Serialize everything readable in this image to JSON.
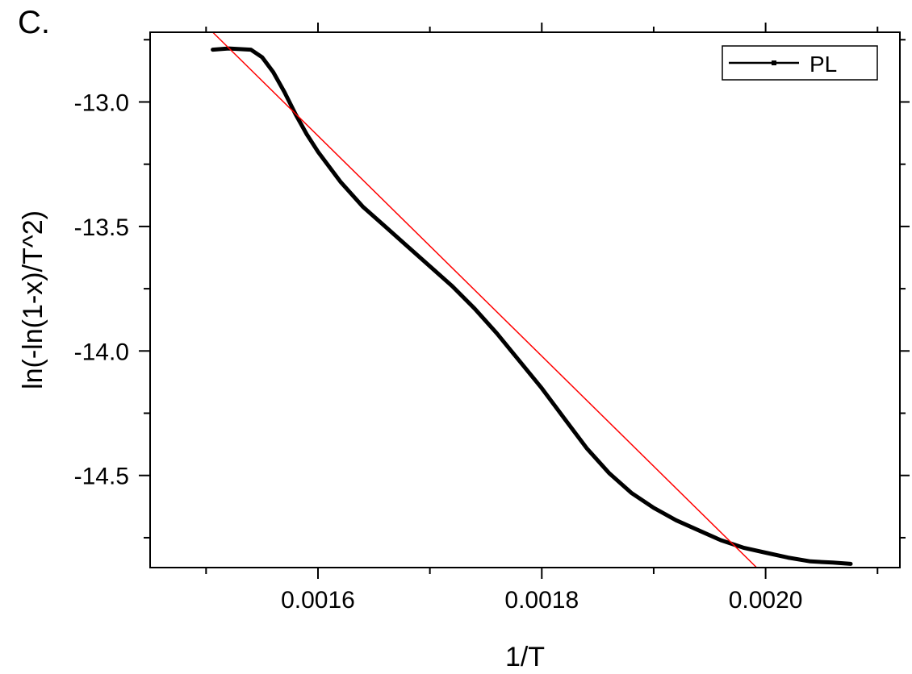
{
  "panel_label": "C.",
  "chart_data": {
    "type": "line",
    "title": "",
    "xlabel": "1/T",
    "ylabel": "ln(-ln(1-x)/T^2)",
    "xlim": [
      0.00145,
      0.00212
    ],
    "ylim": [
      -14.87,
      -12.72
    ],
    "x_major_ticks": [
      0.0016,
      0.0018,
      0.002
    ],
    "x_tick_labels": [
      "0.0016",
      "0.0018",
      "0.0020"
    ],
    "x_minor_ticks": [
      0.0015,
      0.0017,
      0.0019,
      0.0021
    ],
    "y_major_ticks": [
      -13.0,
      -13.5,
      -14.0,
      -14.5
    ],
    "y_tick_labels": [
      "-13.0",
      "-13.5",
      "-14.0",
      "-14.5"
    ],
    "y_minor_ticks": [
      -12.75,
      -13.25,
      -13.75,
      -14.25,
      -14.75
    ],
    "grid": false,
    "legend": {
      "position": "top-right",
      "entries": [
        "PL"
      ]
    },
    "series": [
      {
        "name": "PL",
        "color": "#000000",
        "x": [
          0.001506,
          0.00152,
          0.00154,
          0.00155,
          0.00156,
          0.00157,
          0.00158,
          0.00159,
          0.0016,
          0.00162,
          0.00164,
          0.00166,
          0.00168,
          0.0017,
          0.00172,
          0.00174,
          0.00176,
          0.00178,
          0.0018,
          0.00182,
          0.00184,
          0.00186,
          0.00188,
          0.0019,
          0.00192,
          0.00194,
          0.00196,
          0.00198,
          0.002,
          0.00202,
          0.00204,
          0.00206,
          0.002076
        ],
        "y": [
          -12.79,
          -12.785,
          -12.79,
          -12.82,
          -12.88,
          -12.96,
          -13.05,
          -13.13,
          -13.2,
          -13.32,
          -13.42,
          -13.5,
          -13.58,
          -13.66,
          -13.74,
          -13.83,
          -13.93,
          -14.04,
          -14.15,
          -14.27,
          -14.39,
          -14.49,
          -14.57,
          -14.63,
          -14.68,
          -14.72,
          -14.76,
          -14.79,
          -14.81,
          -14.83,
          -14.845,
          -14.85,
          -14.855
        ]
      },
      {
        "color": "#ff0000",
        "x": [
          0.001506,
          0.001992
        ],
        "y": [
          -12.72,
          -14.87
        ]
      }
    ]
  }
}
